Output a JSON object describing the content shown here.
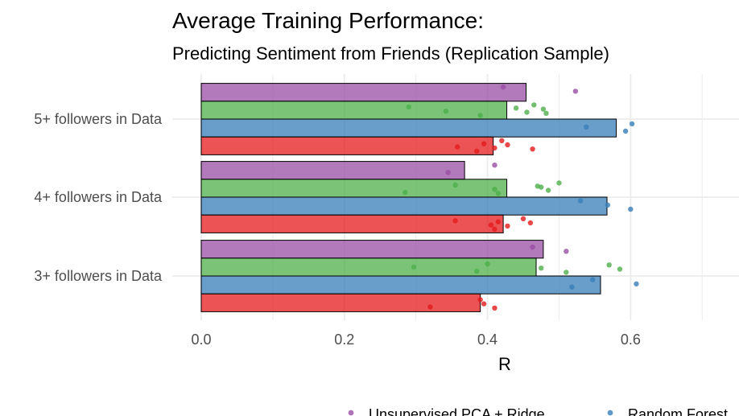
{
  "chart_data": {
    "type": "bar",
    "orientation": "horizontal",
    "title": "Average Training Performance:",
    "subtitle": "Predicting Sentiment from Friends (Replication Sample)",
    "xlabel": "R",
    "ylabel": "",
    "xlim": [
      0,
      0.75
    ],
    "x_ticks": [
      "0.0",
      "0.2",
      "0.4",
      "0.6"
    ],
    "grid": true,
    "legend_position": "bottom",
    "categories": [
      "5+ followers in Data",
      "4+ followers in Data",
      "3+ followers in Data"
    ],
    "series": [
      {
        "name": "Unsupervised PCA + Ridge",
        "color": "#984ea3",
        "values": [
          0.454,
          0.368,
          0.478
        ],
        "points": [
          [
            0.422,
            0.523
          ],
          [
            0.345,
            0.41
          ],
          [
            0.463,
            0.51
          ]
        ]
      },
      {
        "name": "",
        "color": "#4daf4a",
        "values": [
          0.427,
          0.427,
          0.468
        ],
        "points": [
          [
            0.29,
            0.342,
            0.39,
            0.44,
            0.455,
            0.465,
            0.478,
            0.482
          ],
          [
            0.285,
            0.355,
            0.41,
            0.415,
            0.47,
            0.485,
            0.5,
            0.475
          ],
          [
            0.297,
            0.385,
            0.4,
            0.475,
            0.51,
            0.57,
            0.585
          ]
        ]
      },
      {
        "name": "Random Forest",
        "color": "#377eb8",
        "values": [
          0.58,
          0.567,
          0.558
        ],
        "points": [
          [
            0.538,
            0.593,
            0.602
          ],
          [
            0.53,
            0.568,
            0.6
          ],
          [
            0.518,
            0.547,
            0.608
          ]
        ]
      },
      {
        "name": "",
        "color": "#e41a1c",
        "values": [
          0.408,
          0.422,
          0.39
        ],
        "points": [
          [
            0.358,
            0.385,
            0.395,
            0.41,
            0.42,
            0.428,
            0.463
          ],
          [
            0.355,
            0.405,
            0.41,
            0.415,
            0.428,
            0.45,
            0.46
          ],
          [
            0.32,
            0.39,
            0.395,
            0.41
          ]
        ]
      }
    ],
    "legend_visible_items": [
      "Unsupervised PCA + Ridge",
      "Random Forest"
    ]
  }
}
